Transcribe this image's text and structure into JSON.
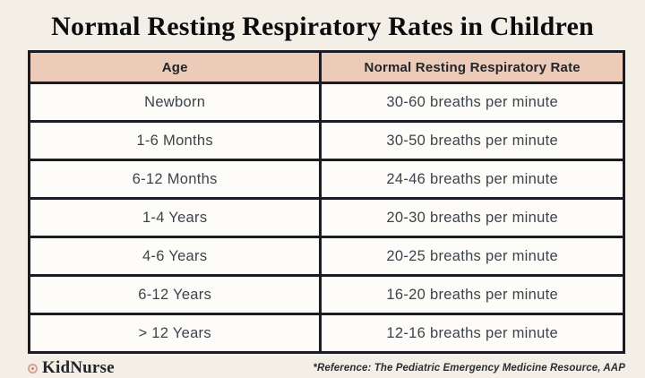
{
  "page": {
    "title": "Normal Resting Respiratory Rates in Children",
    "background_color": "#f3efe6"
  },
  "table": {
    "columns": [
      "Age",
      "Normal Resting Respiratory Rate"
    ],
    "rows": [
      [
        "Newborn",
        "30-60 breaths per minute"
      ],
      [
        "1-6 Months",
        "30-50 breaths per minute"
      ],
      [
        "6-12 Months",
        "24-46 breaths per minute"
      ],
      [
        "1-4 Years",
        "20-30 breaths per minute"
      ],
      [
        "4-6 Years",
        "20-25 breaths per minute"
      ],
      [
        "6-12 Years",
        "16-20 breaths per minute"
      ],
      [
        "> 12 Years",
        "12-16 breaths per minute"
      ]
    ],
    "header_bg_color": "#edcbb9",
    "border_color": "#1b1b24",
    "cell_bg_color": "#fdfcf9"
  },
  "footer": {
    "brand": "KidNurse",
    "brand_icon": "circle-dot-icon",
    "reference": "*Reference: The Pediatric Emergency Medicine Resource, AAP"
  },
  "chart_data": {
    "type": "table",
    "title": "Normal Resting Respiratory Rates in Children",
    "columns": [
      "Age",
      "Normal Resting Respiratory Rate"
    ],
    "rows": [
      [
        "Newborn",
        "30-60 breaths per minute"
      ],
      [
        "1-6 Months",
        "30-50 breaths per minute"
      ],
      [
        "6-12 Months",
        "24-46 breaths per minute"
      ],
      [
        "1-4 Years",
        "20-30 breaths per minute"
      ],
      [
        "4-6 Years",
        "20-25 breaths per minute"
      ],
      [
        "6-12 Years",
        "16-20 breaths per minute"
      ],
      [
        "> 12 Years",
        "12-16 breaths per minute"
      ]
    ],
    "units": "breaths per minute",
    "source": "*Reference: The Pediatric Emergency Medicine Resource, AAP"
  }
}
